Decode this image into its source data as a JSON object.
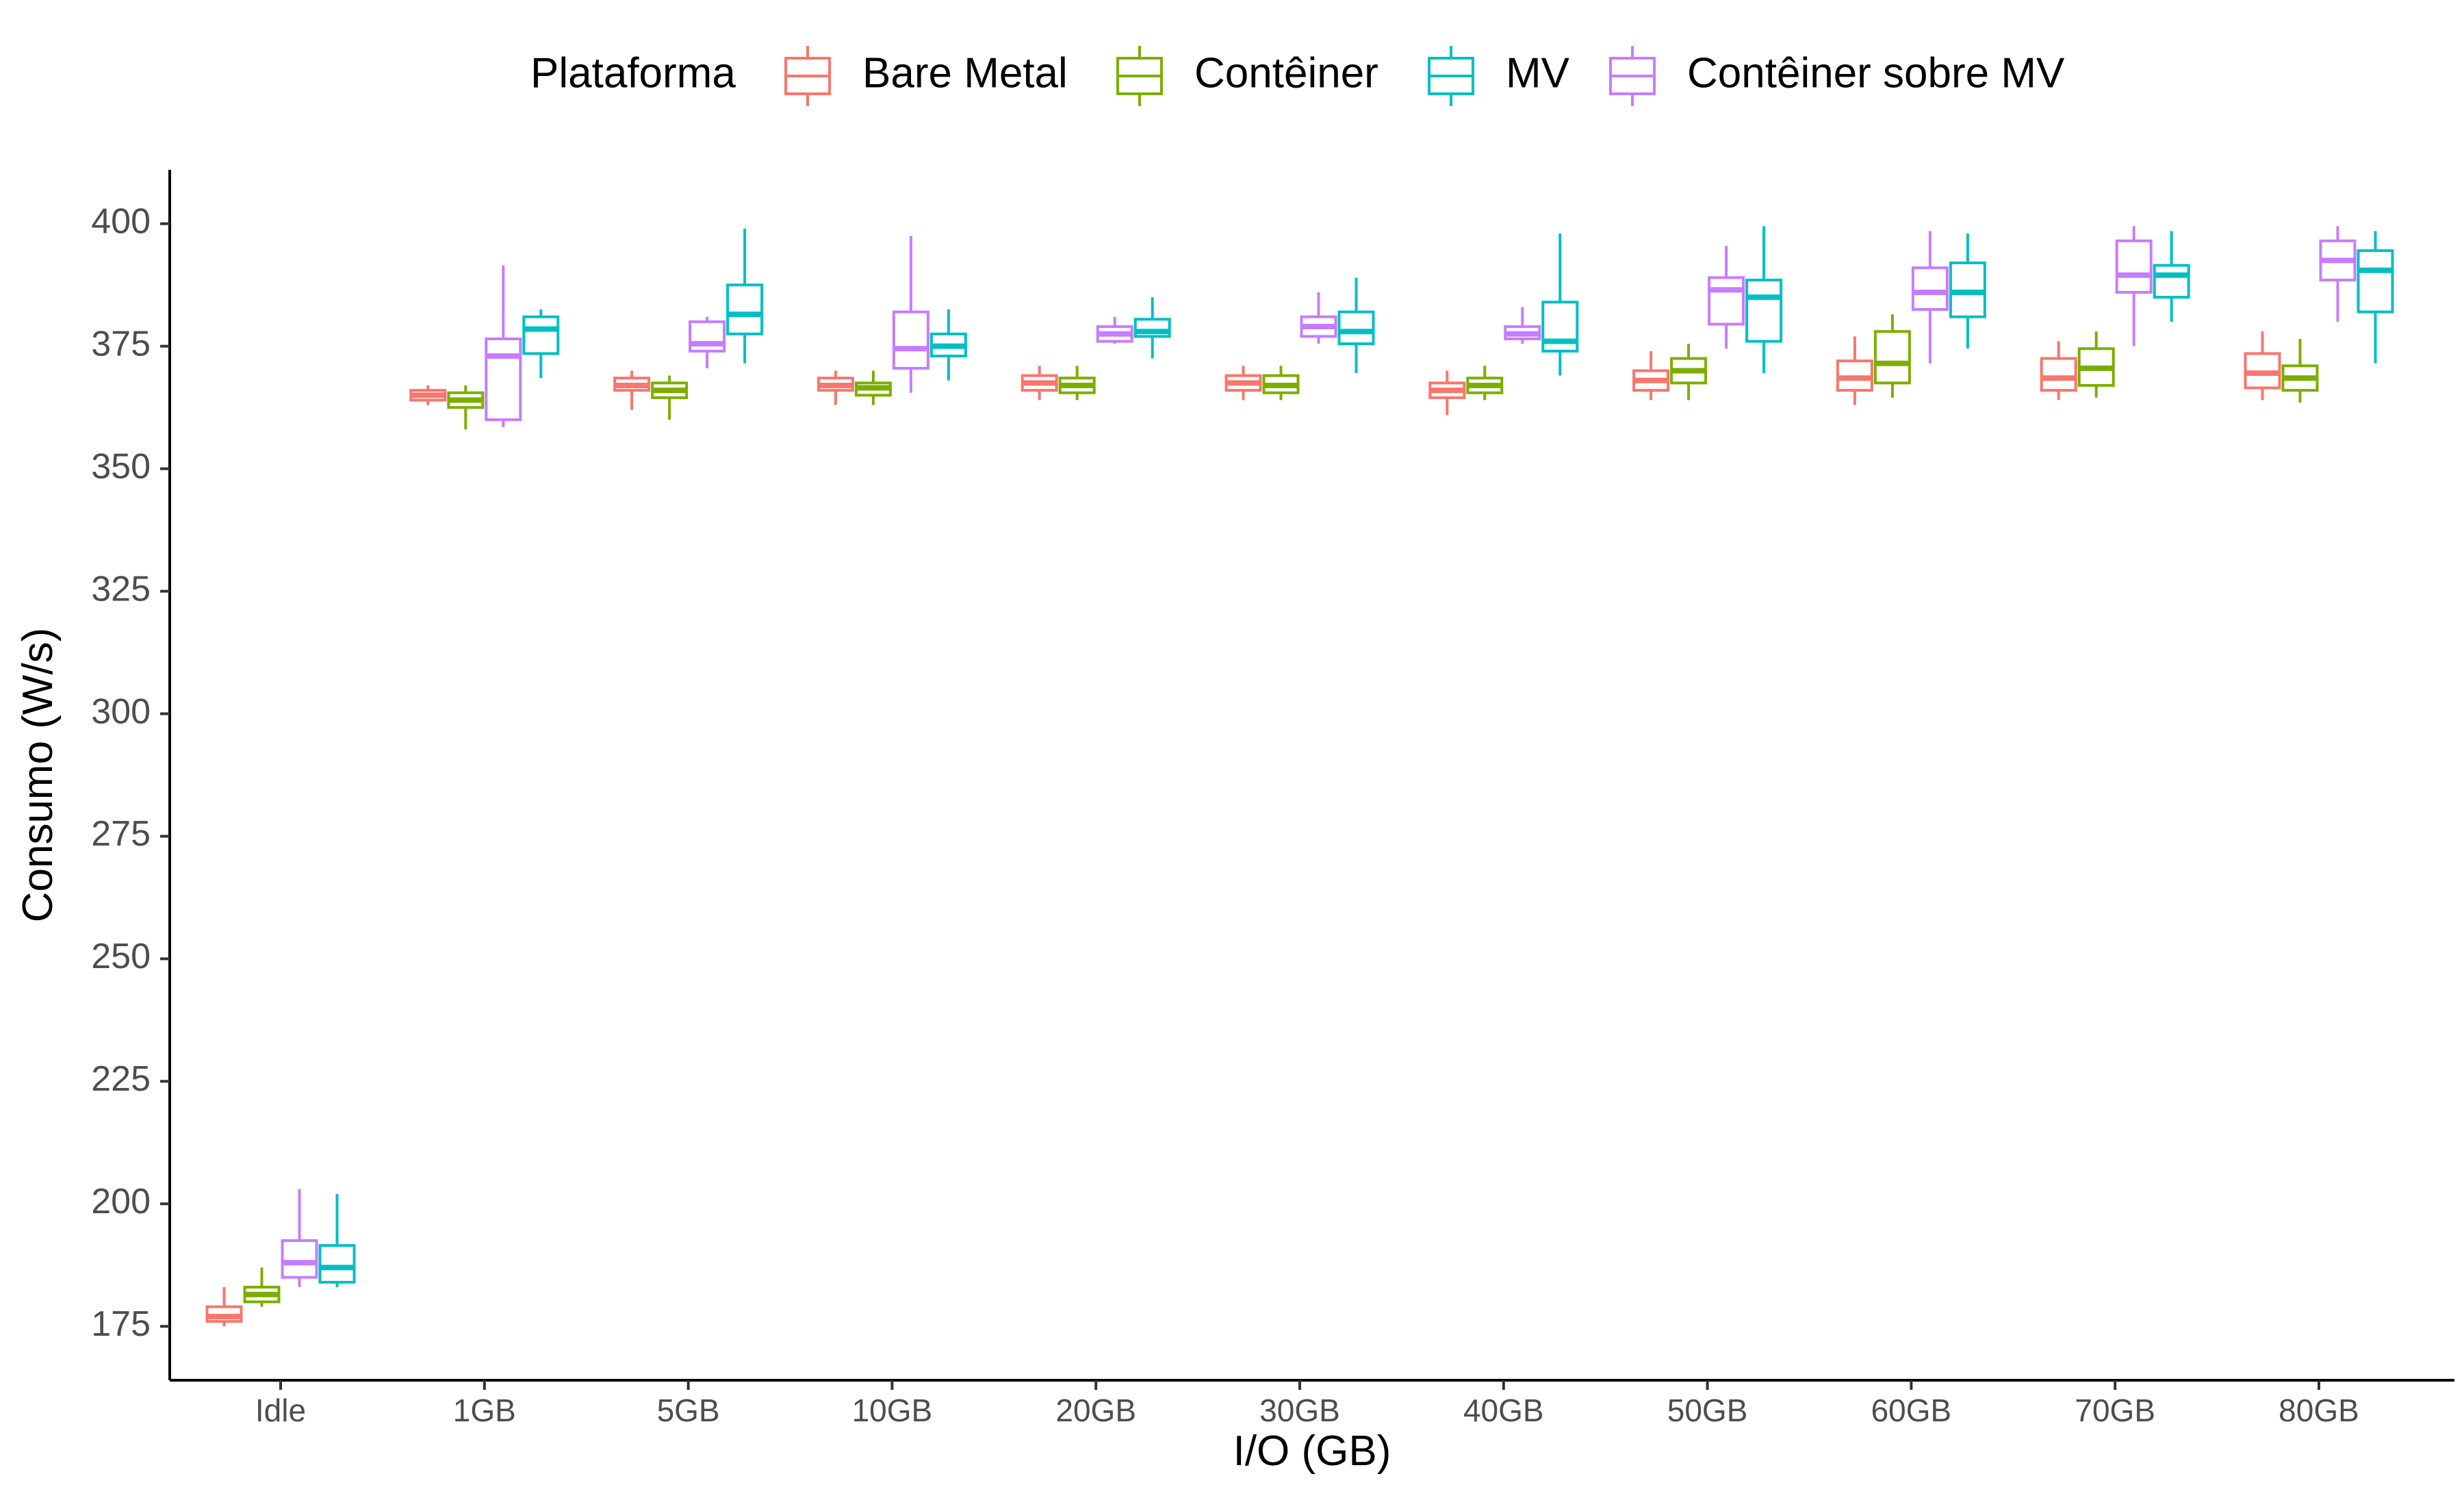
{
  "chart_data": {
    "type": "boxplot",
    "title": "",
    "xlabel": "I/O (GB)",
    "ylabel": "Consumo (W/s)",
    "ylim": [
      164,
      411
    ],
    "y_ticks": [
      175,
      200,
      225,
      250,
      275,
      300,
      325,
      350,
      375,
      400
    ],
    "grid": false,
    "legend_position": "top",
    "legend_title": "Plataforma",
    "categories": [
      "Idle",
      "1GB",
      "5GB",
      "10GB",
      "20GB",
      "30GB",
      "40GB",
      "50GB",
      "60GB",
      "70GB",
      "80GB"
    ],
    "series": [
      {
        "name": "Bare Metal",
        "color": "#F8766D",
        "boxes": [
          {
            "min": 175,
            "q1": 176,
            "median": 177,
            "q3": 179,
            "max": 183
          },
          {
            "min": 363,
            "q1": 364,
            "median": 365,
            "q3": 366,
            "max": 367
          },
          {
            "min": 362,
            "q1": 366,
            "median": 367,
            "q3": 368.5,
            "max": 370
          },
          {
            "min": 363,
            "q1": 366,
            "median": 367,
            "q3": 368.5,
            "max": 370
          },
          {
            "min": 364,
            "q1": 366,
            "median": 367.5,
            "q3": 369,
            "max": 371
          },
          {
            "min": 364,
            "q1": 366,
            "median": 367.5,
            "q3": 369,
            "max": 371
          },
          {
            "min": 361,
            "q1": 364.5,
            "median": 366,
            "q3": 367.5,
            "max": 370
          },
          {
            "min": 364,
            "q1": 366,
            "median": 368,
            "q3": 370,
            "max": 374
          },
          {
            "min": 363,
            "q1": 366,
            "median": 368.5,
            "q3": 372,
            "max": 377
          },
          {
            "min": 364,
            "q1": 366,
            "median": 368.5,
            "q3": 372.5,
            "max": 376
          },
          {
            "min": 364,
            "q1": 366.5,
            "median": 369.5,
            "q3": 373.5,
            "max": 378
          }
        ]
      },
      {
        "name": "Contêiner",
        "color": "#7CAE00",
        "boxes": [
          {
            "min": 179,
            "q1": 180,
            "median": 181.5,
            "q3": 183,
            "max": 187
          },
          {
            "min": 358,
            "q1": 362.5,
            "median": 364,
            "q3": 365.5,
            "max": 367
          },
          {
            "min": 360,
            "q1": 364.5,
            "median": 366,
            "q3": 367.5,
            "max": 369
          },
          {
            "min": 363,
            "q1": 365,
            "median": 366.5,
            "q3": 367.5,
            "max": 370
          },
          {
            "min": 364,
            "q1": 365.5,
            "median": 367,
            "q3": 368.5,
            "max": 371
          },
          {
            "min": 364,
            "q1": 365.5,
            "median": 367,
            "q3": 369,
            "max": 371
          },
          {
            "min": 364,
            "q1": 365.5,
            "median": 367,
            "q3": 368.5,
            "max": 371
          },
          {
            "min": 364,
            "q1": 367.5,
            "median": 370,
            "q3": 372.5,
            "max": 375.5
          },
          {
            "min": 364.5,
            "q1": 367.5,
            "median": 371.5,
            "q3": 378,
            "max": 381.5
          },
          {
            "min": 364.5,
            "q1": 367,
            "median": 370.5,
            "q3": 374.5,
            "max": 378
          },
          {
            "min": 363.5,
            "q1": 366,
            "median": 368.5,
            "q3": 371,
            "max": 376.5
          }
        ]
      },
      {
        "name": "Contêiner sobre MV",
        "color": "#C77CFF",
        "boxes": [
          {
            "min": 183,
            "q1": 185,
            "median": 188,
            "q3": 192.5,
            "max": 203
          },
          {
            "min": 358.5,
            "q1": 360,
            "median": 373,
            "q3": 376.5,
            "max": 391.5
          },
          {
            "min": 370.5,
            "q1": 374,
            "median": 375.5,
            "q3": 380,
            "max": 381
          },
          {
            "min": 365.5,
            "q1": 370.5,
            "median": 374.5,
            "q3": 382,
            "max": 397.5
          },
          {
            "min": 375.5,
            "q1": 376,
            "median": 377.5,
            "q3": 379,
            "max": 381
          },
          {
            "min": 375.5,
            "q1": 377,
            "median": 379,
            "q3": 381,
            "max": 386
          },
          {
            "min": 375.5,
            "q1": 376.5,
            "median": 377.5,
            "q3": 379,
            "max": 383
          },
          {
            "min": 374.5,
            "q1": 379.5,
            "median": 386.5,
            "q3": 389,
            "max": 395.5
          },
          {
            "min": 371.5,
            "q1": 382.5,
            "median": 386,
            "q3": 391,
            "max": 398.5
          },
          {
            "min": 375,
            "q1": 386,
            "median": 389.5,
            "q3": 396.5,
            "max": 399.5
          },
          {
            "min": 380,
            "q1": 388.5,
            "median": 392.5,
            "q3": 396.5,
            "max": 399.5
          }
        ]
      },
      {
        "name": "MV",
        "color": "#00BFC4",
        "boxes": [
          {
            "min": 183,
            "q1": 184,
            "median": 187,
            "q3": 191.5,
            "max": 202
          },
          {
            "min": 368.5,
            "q1": 373.5,
            "median": 378.5,
            "q3": 381,
            "max": 382.5
          },
          {
            "min": 371.5,
            "q1": 377.5,
            "median": 381.5,
            "q3": 387.5,
            "max": 399
          },
          {
            "min": 368,
            "q1": 373,
            "median": 375,
            "q3": 377.5,
            "max": 382.5
          },
          {
            "min": 372.5,
            "q1": 377,
            "median": 378,
            "q3": 380.5,
            "max": 385
          },
          {
            "min": 369.5,
            "q1": 375.5,
            "median": 378,
            "q3": 382,
            "max": 389
          },
          {
            "min": 369,
            "q1": 374,
            "median": 376,
            "q3": 384,
            "max": 398
          },
          {
            "min": 369.5,
            "q1": 376,
            "median": 385,
            "q3": 388.5,
            "max": 399.5
          },
          {
            "min": 374.5,
            "q1": 381,
            "median": 386,
            "q3": 392,
            "max": 398
          },
          {
            "min": 380,
            "q1": 385,
            "median": 389.5,
            "q3": 391.5,
            "max": 398.5
          },
          {
            "min": 371.5,
            "q1": 382,
            "median": 390.5,
            "q3": 394.5,
            "max": 398.5
          }
        ]
      }
    ]
  }
}
